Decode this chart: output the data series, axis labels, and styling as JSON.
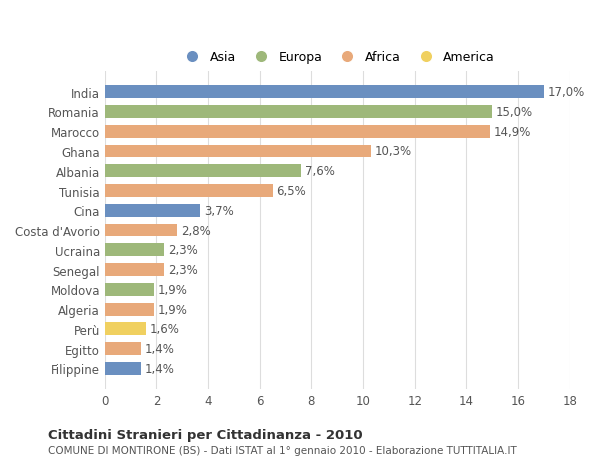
{
  "countries": [
    "India",
    "Romania",
    "Marocco",
    "Ghana",
    "Albania",
    "Tunisia",
    "Cina",
    "Costa d'Avorio",
    "Ucraina",
    "Senegal",
    "Moldova",
    "Algeria",
    "Perù",
    "Egitto",
    "Filippine"
  ],
  "values": [
    17.0,
    15.0,
    14.9,
    10.3,
    7.6,
    6.5,
    3.7,
    2.8,
    2.3,
    2.3,
    1.9,
    1.9,
    1.6,
    1.4,
    1.4
  ],
  "labels": [
    "17,0%",
    "15,0%",
    "14,9%",
    "10,3%",
    "7,6%",
    "6,5%",
    "3,7%",
    "2,8%",
    "2,3%",
    "2,3%",
    "1,9%",
    "1,9%",
    "1,6%",
    "1,4%",
    "1,4%"
  ],
  "continents": [
    "Asia",
    "Europa",
    "Africa",
    "Africa",
    "Europa",
    "Africa",
    "Asia",
    "Africa",
    "Europa",
    "Africa",
    "Europa",
    "Africa",
    "America",
    "Africa",
    "Asia"
  ],
  "colors": {
    "Asia": "#6a8fc0",
    "Europa": "#9eb87a",
    "Africa": "#e8a97a",
    "America": "#f0d060"
  },
  "xlim": [
    0,
    18
  ],
  "xticks": [
    0,
    2,
    4,
    6,
    8,
    10,
    12,
    14,
    16,
    18
  ],
  "title": "Cittadini Stranieri per Cittadinanza - 2010",
  "subtitle": "COMUNE DI MONTIRONE (BS) - Dati ISTAT al 1° gennaio 2010 - Elaborazione TUTTITALIA.IT",
  "background_color": "#ffffff",
  "grid_color": "#dddddd",
  "bar_height": 0.65,
  "label_fontsize": 8.5,
  "tick_fontsize": 8.5,
  "legend_items": [
    "Asia",
    "Europa",
    "Africa",
    "America"
  ]
}
